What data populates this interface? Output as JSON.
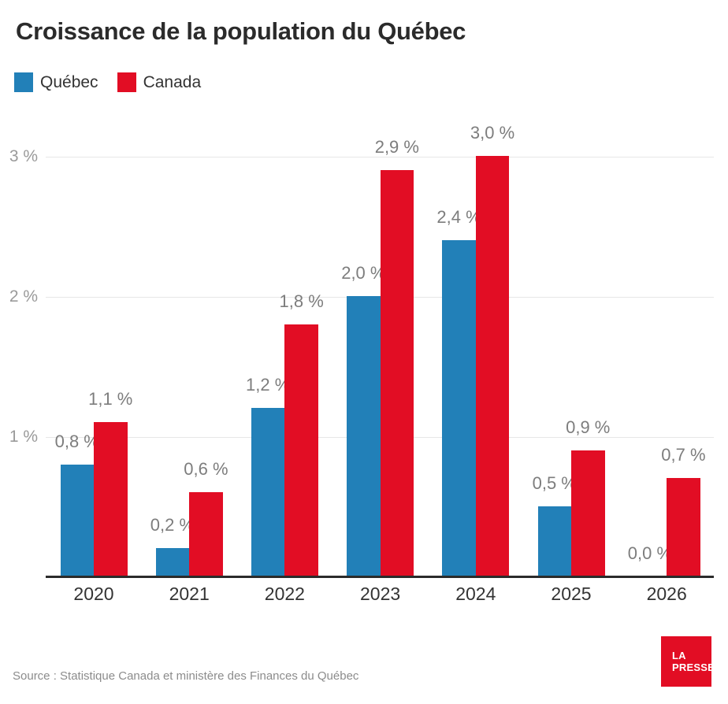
{
  "page": {
    "title": "Croissance de la population du Québec",
    "source": "Source : Statistique Canada et ministère des Finances du Québec",
    "logo": {
      "line1": "LA",
      "line2": "PRESSE",
      "color": "#e20d24"
    }
  },
  "legend": {
    "items": [
      {
        "label": "Québec",
        "color": "#2280b8"
      },
      {
        "label": "Canada",
        "color": "#e20d24"
      }
    ]
  },
  "chart_data": {
    "type": "bar",
    "title": "Croissance de la population du Québec",
    "categories": [
      "2020",
      "2021",
      "2022",
      "2023",
      "2024",
      "2025",
      "2026"
    ],
    "series": [
      {
        "name": "Québec",
        "color": "#2280b8",
        "values": [
          0.8,
          0.2,
          1.2,
          2.0,
          2.4,
          0.5,
          0.0
        ],
        "labels": [
          "0,8 %",
          "0,2 %",
          "1,2 %",
          "2,0 %",
          "2,4 %",
          "0,5 %",
          "0,0 %"
        ]
      },
      {
        "name": "Canada",
        "color": "#e20d24",
        "values": [
          1.1,
          0.6,
          1.8,
          2.9,
          3.0,
          0.9,
          0.7
        ],
        "labels": [
          "1,1 %",
          "0,6 %",
          "1,8 %",
          "2,9 %",
          "3,0 %",
          "0,9 %",
          "0,7 %"
        ]
      }
    ],
    "y_ticks": [
      {
        "value": 1,
        "label": "1 %"
      },
      {
        "value": 2,
        "label": "2 %"
      },
      {
        "value": 3,
        "label": "3 %"
      }
    ],
    "ylim": [
      0,
      3.35
    ],
    "unit": "%",
    "grid": true,
    "legend_position": "top-left",
    "xlabel": "",
    "ylabel": "",
    "value_label_color": "#7d7d7d",
    "gridline_color": "#e7e7e7",
    "axis_color": "#2b2b2b"
  }
}
